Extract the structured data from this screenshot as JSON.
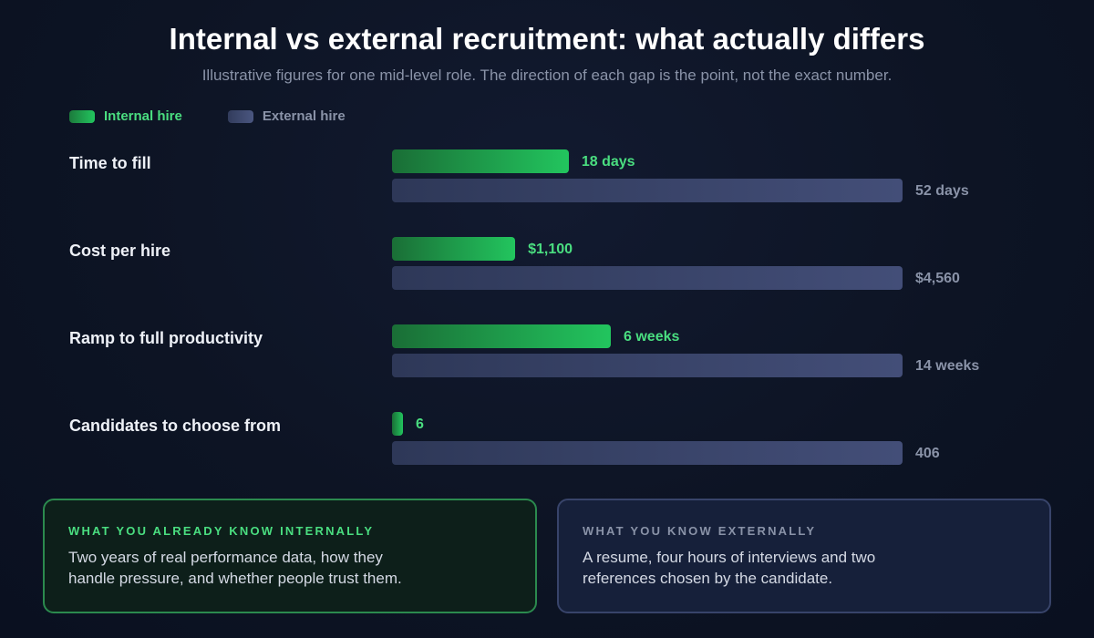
{
  "title": "Internal vs external recruitment: what actually differs",
  "subtitle": "Illustrative figures for one mid-level role. The direction of each gap is the point, not the exact number.",
  "legend": {
    "internal": "Internal hire",
    "external": "External hire"
  },
  "colors": {
    "internal": "#22c55e",
    "external": "#434e78",
    "background": "#0d1424"
  },
  "chart_data": {
    "type": "bar",
    "orientation": "horizontal",
    "categories": [
      "Time to fill",
      "Cost per hire",
      "Ramp to full productivity",
      "Candidates to choose from"
    ],
    "series": [
      {
        "name": "Internal hire",
        "values": [
          18,
          1100,
          6,
          6
        ],
        "labels": [
          "18 days",
          "$1,100",
          "6 weeks",
          "6"
        ]
      },
      {
        "name": "External hire",
        "values": [
          52,
          4560,
          14,
          406
        ],
        "labels": [
          "52 days",
          "$4,560",
          "14 weeks",
          "406"
        ]
      }
    ],
    "scale": "each metric scaled to its own maximum",
    "legend_position": "top-left"
  },
  "cards": {
    "internal": {
      "heading": "WHAT YOU ALREADY KNOW INTERNALLY",
      "text": "Two years of real performance data, how they handle pressure, and whether people trust them."
    },
    "external": {
      "heading": "WHAT YOU KNOW EXTERNALLY",
      "text": "A resume, four hours of interviews and two references chosen by the candidate."
    }
  }
}
